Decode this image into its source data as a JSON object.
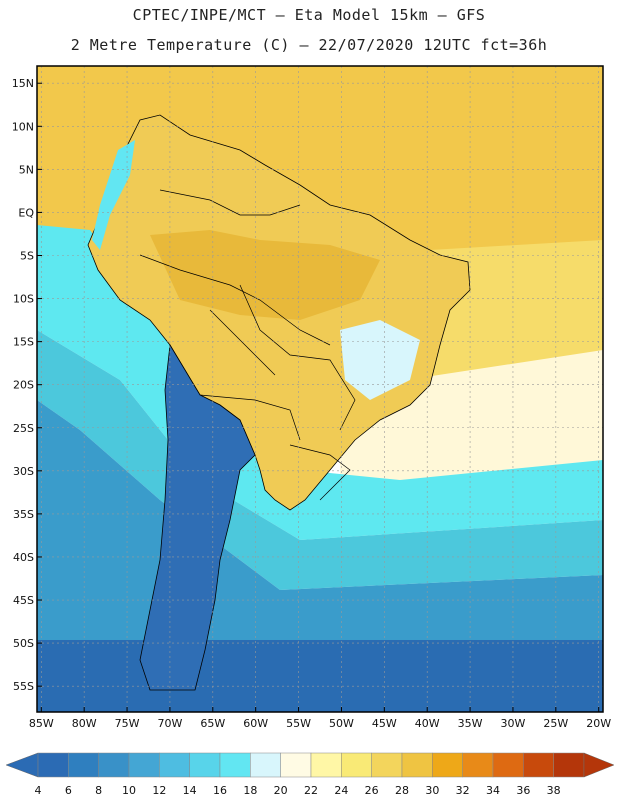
{
  "header": {
    "line1": "CPTEC/INPE/MCT –  Eta Model 15km – GFS",
    "line2": "2 Metre Temperature (C) – 22/07/2020 12UTC fct=36h"
  },
  "map": {
    "lat_labels": [
      "15N",
      "10N",
      "5N",
      "EQ",
      "5S",
      "10S",
      "15S",
      "20S",
      "25S",
      "30S",
      "35S",
      "40S",
      "45S",
      "50S",
      "55S"
    ],
    "lat_values": [
      15,
      10,
      5,
      0,
      -5,
      -10,
      -15,
      -20,
      -25,
      -30,
      -35,
      -40,
      -45,
      -50,
      -55
    ],
    "lon_labels": [
      "85W",
      "80W",
      "75W",
      "70W",
      "65W",
      "60W",
      "55W",
      "50W",
      "45W",
      "40W",
      "35W",
      "30W",
      "25W",
      "20W"
    ],
    "lon_values": [
      -85,
      -80,
      -75,
      -70,
      -65,
      -60,
      -55,
      -50,
      -45,
      -40,
      -35,
      -30,
      -25,
      -20
    ],
    "extent": {
      "lon_min": -85.5,
      "lon_max": -19.5,
      "lat_min": -58,
      "lat_max": 17
    },
    "colors": {
      "ocean_north": "#F2C84B",
      "ocean_mid": "#F6DC6A",
      "ocean_subtropic": "#FFF8D8",
      "ocean_cyan": "#5EE8F0",
      "ocean_teal": "#4CC8DC",
      "ocean_south": "#3A9CCB",
      "ocean_far_south": "#2A6CB2",
      "land_warm": "#E8B93A",
      "land_tropic": "#F0CB55",
      "andes": "#2F6EB5",
      "border": "#000000",
      "grid": "#999999"
    }
  },
  "colorbar": {
    "labels": [
      "4",
      "6",
      "8",
      "10",
      "12",
      "14",
      "16",
      "18",
      "20",
      "22",
      "24",
      "26",
      "28",
      "30",
      "32",
      "34",
      "36",
      "38"
    ],
    "colors": [
      "#2B6BB4",
      "#2F7FBF",
      "#3991C8",
      "#44A6D4",
      "#4EBDE1",
      "#58D4EA",
      "#62E6F2",
      "#D8F6FC",
      "#FFFBE4",
      "#FFF7A6",
      "#F9EA76",
      "#F3D55C",
      "#EFC442",
      "#EEA818",
      "#E88A18",
      "#DE6A12",
      "#C84A0C",
      "#B4360A"
    ]
  }
}
